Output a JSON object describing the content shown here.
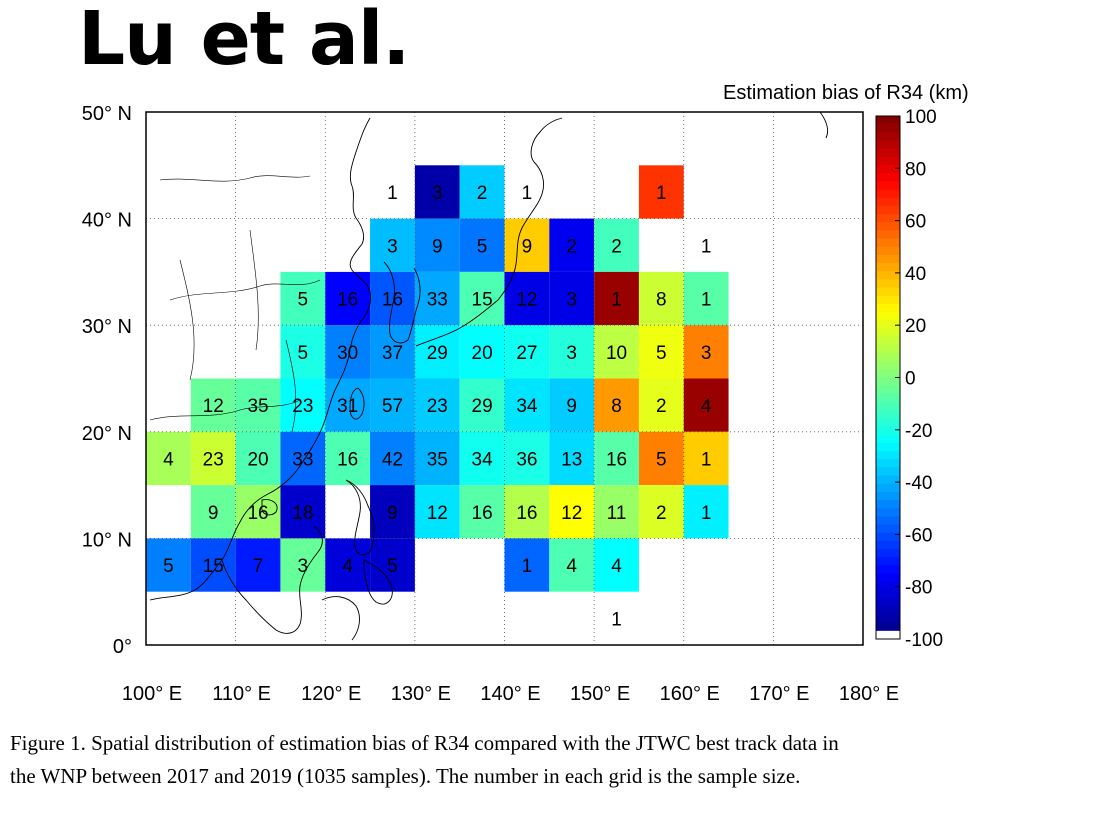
{
  "header": {
    "title": "Lu et al."
  },
  "colorbar": {
    "title": "Estimation bias of R34 (km)",
    "ticks": [
      100,
      80,
      60,
      40,
      20,
      0,
      -20,
      -40,
      -60,
      -80,
      -100
    ],
    "range": [
      -100,
      100
    ],
    "colormap": "jet",
    "bottom_color": "#ffffff"
  },
  "caption": {
    "line1": "Figure 1. Spatial distribution of estimation bias of R34 compared with the JTWC best track data in",
    "line2": "the WNP between 2017 and 2019 (1035 samples). The number in each grid is the sample size."
  },
  "chart_data": {
    "type": "heatmap",
    "title": "",
    "xlabel": "",
    "ylabel": "",
    "x_ticks": [
      "100° E",
      "110° E",
      "120° E",
      "130° E",
      "140° E",
      "150° E",
      "160° E",
      "170° E",
      "180° E"
    ],
    "y_ticks": [
      "0°",
      "10° N",
      "20° N",
      "30° N",
      "40° N",
      "50° N"
    ],
    "xlim": [
      100,
      180
    ],
    "ylim": [
      0,
      50
    ],
    "cell_size_deg": 5,
    "grid": "dotted at 10°",
    "value_units": "km",
    "cells": [
      {
        "lon": 130,
        "lat": 40,
        "bias": -92,
        "n": 3
      },
      {
        "lon": 135,
        "lat": 40,
        "bias": -35,
        "n": 2
      },
      {
        "lon": 155,
        "lat": 40,
        "bias": 65,
        "n": 1
      },
      {
        "lon": 125,
        "lat": 35,
        "bias": -38,
        "n": 3
      },
      {
        "lon": 130,
        "lat": 35,
        "bias": -48,
        "n": 9
      },
      {
        "lon": 135,
        "lat": 35,
        "bias": -52,
        "n": 5
      },
      {
        "lon": 140,
        "lat": 35,
        "bias": 35,
        "n": 9
      },
      {
        "lon": 145,
        "lat": 35,
        "bias": -78,
        "n": 2
      },
      {
        "lon": 150,
        "lat": 35,
        "bias": -12,
        "n": 2
      },
      {
        "lon": 115,
        "lat": 30,
        "bias": -12,
        "n": 5
      },
      {
        "lon": 120,
        "lat": 30,
        "bias": -75,
        "n": 16
      },
      {
        "lon": 125,
        "lat": 30,
        "bias": -58,
        "n": 16
      },
      {
        "lon": 130,
        "lat": 30,
        "bias": -42,
        "n": 33
      },
      {
        "lon": 135,
        "lat": 30,
        "bias": -10,
        "n": 15
      },
      {
        "lon": 140,
        "lat": 30,
        "bias": -80,
        "n": 12
      },
      {
        "lon": 145,
        "lat": 30,
        "bias": -80,
        "n": 3
      },
      {
        "lon": 150,
        "lat": 30,
        "bias": 95,
        "n": 1
      },
      {
        "lon": 155,
        "lat": 30,
        "bias": 15,
        "n": 8
      },
      {
        "lon": 160,
        "lat": 30,
        "bias": -8,
        "n": 1
      },
      {
        "lon": 115,
        "lat": 25,
        "bias": -20,
        "n": 5
      },
      {
        "lon": 120,
        "lat": 25,
        "bias": -50,
        "n": 30
      },
      {
        "lon": 125,
        "lat": 25,
        "bias": -45,
        "n": 37
      },
      {
        "lon": 130,
        "lat": 25,
        "bias": -28,
        "n": 29
      },
      {
        "lon": 135,
        "lat": 25,
        "bias": -25,
        "n": 20
      },
      {
        "lon": 140,
        "lat": 25,
        "bias": -22,
        "n": 27
      },
      {
        "lon": 145,
        "lat": 25,
        "bias": -18,
        "n": 3
      },
      {
        "lon": 150,
        "lat": 25,
        "bias": 12,
        "n": 10
      },
      {
        "lon": 155,
        "lat": 25,
        "bias": 22,
        "n": 5
      },
      {
        "lon": 160,
        "lat": 25,
        "bias": 50,
        "n": 3
      },
      {
        "lon": 105,
        "lat": 20,
        "bias": -5,
        "n": 12
      },
      {
        "lon": 110,
        "lat": 20,
        "bias": -8,
        "n": 35
      },
      {
        "lon": 115,
        "lat": 20,
        "bias": -25,
        "n": 23
      },
      {
        "lon": 120,
        "lat": 20,
        "bias": -42,
        "n": 31
      },
      {
        "lon": 125,
        "lat": 20,
        "bias": -40,
        "n": 57
      },
      {
        "lon": 130,
        "lat": 20,
        "bias": -35,
        "n": 23
      },
      {
        "lon": 135,
        "lat": 20,
        "bias": -15,
        "n": 29
      },
      {
        "lon": 140,
        "lat": 20,
        "bias": -30,
        "n": 34
      },
      {
        "lon": 145,
        "lat": 20,
        "bias": -35,
        "n": 9
      },
      {
        "lon": 150,
        "lat": 20,
        "bias": 45,
        "n": 8
      },
      {
        "lon": 155,
        "lat": 20,
        "bias": 20,
        "n": 2
      },
      {
        "lon": 160,
        "lat": 20,
        "bias": 95,
        "n": 4
      },
      {
        "lon": 100,
        "lat": 15,
        "bias": 8,
        "n": 4
      },
      {
        "lon": 105,
        "lat": 15,
        "bias": 15,
        "n": 23
      },
      {
        "lon": 110,
        "lat": 15,
        "bias": -10,
        "n": 20
      },
      {
        "lon": 115,
        "lat": 15,
        "bias": -55,
        "n": 33
      },
      {
        "lon": 120,
        "lat": 15,
        "bias": -10,
        "n": 16
      },
      {
        "lon": 125,
        "lat": 15,
        "bias": -50,
        "n": 42
      },
      {
        "lon": 130,
        "lat": 15,
        "bias": -40,
        "n": 35
      },
      {
        "lon": 135,
        "lat": 15,
        "bias": -22,
        "n": 34
      },
      {
        "lon": 140,
        "lat": 15,
        "bias": -20,
        "n": 36
      },
      {
        "lon": 145,
        "lat": 15,
        "bias": -32,
        "n": 13
      },
      {
        "lon": 150,
        "lat": 15,
        "bias": -8,
        "n": 16
      },
      {
        "lon": 155,
        "lat": 15,
        "bias": 50,
        "n": 5
      },
      {
        "lon": 160,
        "lat": 15,
        "bias": 35,
        "n": 1
      },
      {
        "lon": 105,
        "lat": 10,
        "bias": -5,
        "n": 9
      },
      {
        "lon": 110,
        "lat": 10,
        "bias": 5,
        "n": 16
      },
      {
        "lon": 115,
        "lat": 10,
        "bias": -85,
        "n": 18
      },
      {
        "lon": 125,
        "lat": 10,
        "bias": -88,
        "n": 9
      },
      {
        "lon": 130,
        "lat": 10,
        "bias": -30,
        "n": 12
      },
      {
        "lon": 135,
        "lat": 10,
        "bias": -8,
        "n": 16
      },
      {
        "lon": 140,
        "lat": 10,
        "bias": 10,
        "n": 16
      },
      {
        "lon": 145,
        "lat": 10,
        "bias": 25,
        "n": 12
      },
      {
        "lon": 150,
        "lat": 10,
        "bias": 5,
        "n": 11
      },
      {
        "lon": 155,
        "lat": 10,
        "bias": 18,
        "n": 2
      },
      {
        "lon": 160,
        "lat": 10,
        "bias": -28,
        "n": 1
      },
      {
        "lon": 100,
        "lat": 5,
        "bias": -50,
        "n": 5
      },
      {
        "lon": 105,
        "lat": 5,
        "bias": -60,
        "n": 15
      },
      {
        "lon": 110,
        "lat": 5,
        "bias": -70,
        "n": 7
      },
      {
        "lon": 115,
        "lat": 5,
        "bias": -5,
        "n": 3
      },
      {
        "lon": 120,
        "lat": 5,
        "bias": -82,
        "n": 4
      },
      {
        "lon": 125,
        "lat": 5,
        "bias": -85,
        "n": 5
      },
      {
        "lon": 140,
        "lat": 5,
        "bias": -55,
        "n": 1
      },
      {
        "lon": 145,
        "lat": 5,
        "bias": -10,
        "n": 4
      },
      {
        "lon": 150,
        "lat": 5,
        "bias": -25,
        "n": 4
      }
    ],
    "white_cells": [
      {
        "lon": 125,
        "lat": 40,
        "n": 1
      },
      {
        "lon": 140,
        "lat": 40,
        "n": 1
      },
      {
        "lon": 160,
        "lat": 35,
        "n": 1
      },
      {
        "lon": 150,
        "lat": 0,
        "n": 1
      }
    ]
  }
}
